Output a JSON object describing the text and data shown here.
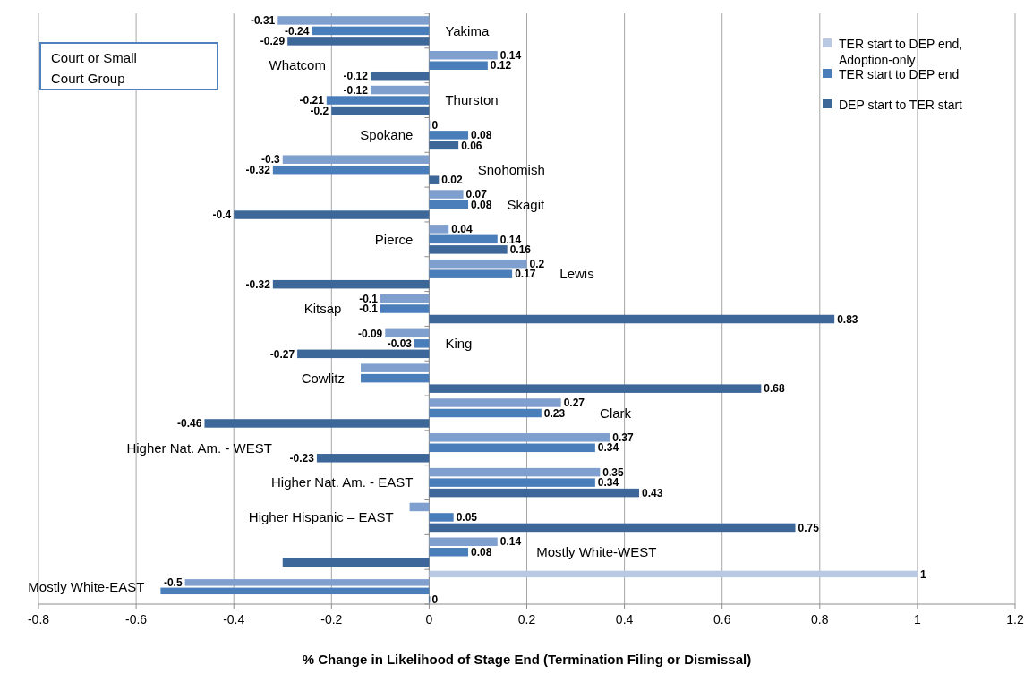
{
  "chart_data": {
    "type": "bar",
    "orientation": "horizontal",
    "xlabel": "% Change in Likelihood of Stage End (Termination Filing or Dismissal)",
    "ylabel": "Court or Small Court Group",
    "categories": [
      "Yakima",
      "Whatcom",
      "Thurston",
      "Spokane",
      "Snohomish",
      "Skagit",
      "Pierce",
      "Lewis",
      "Kitsap",
      "King",
      "Cowlitz",
      "Clark",
      "Higher Nat. Am. - WEST",
      "Higher Nat. Am. - EAST",
      "Higher Hispanic – EAST",
      "Mostly White-WEST",
      "Mostly White-EAST"
    ],
    "series": [
      {
        "name": "TER start to DEP end, Adoption-only",
        "color": "#b9c9e3",
        "values": [
          null,
          null,
          null,
          null,
          null,
          null,
          null,
          null,
          null,
          null,
          null,
          null,
          null,
          null,
          null,
          null,
          1
        ],
        "value_labels": [
          null,
          null,
          null,
          null,
          null,
          null,
          null,
          null,
          null,
          null,
          null,
          null,
          null,
          null,
          null,
          null,
          "1"
        ]
      },
      {
        "color": "#7f9fcf",
        "values": [
          -0.31,
          0.14,
          -0.12,
          0,
          -0.3,
          0.07,
          0.04,
          0.2,
          -0.1,
          -0.09,
          -0.14,
          0.27,
          0.37,
          0.35,
          -0.04,
          0.14,
          -0.5
        ],
        "value_labels": [
          "-0.31",
          "0.14",
          "-0.12",
          "0",
          "-0.3",
          "0.07",
          "0.04",
          "0.2",
          "-0.1",
          "-0.09",
          null,
          "0.27",
          "0.37",
          "0.35",
          null,
          "0.14",
          "-0.5"
        ]
      },
      {
        "name": "TER start to DEP end",
        "color": "#4a7ebb",
        "values": [
          -0.24,
          0.12,
          -0.21,
          0.08,
          -0.32,
          0.08,
          0.14,
          0.17,
          -0.1,
          -0.03,
          -0.14,
          0.23,
          0.34,
          0.34,
          0.05,
          0.08,
          -0.55
        ],
        "value_labels": [
          "-0.24",
          "0.12",
          "-0.21",
          "0.08",
          "-0.32",
          "0.08",
          "0.14",
          "0.17",
          "-0.1",
          "-0.03",
          null,
          "0.23",
          "0.34",
          "0.34",
          "0.05",
          "0.08",
          null
        ]
      },
      {
        "name": "DEP start to TER start",
        "color": "#3d6699",
        "values": [
          -0.29,
          -0.12,
          -0.2,
          0.06,
          0.02,
          -0.4,
          0.16,
          -0.32,
          0.83,
          -0.27,
          0.68,
          -0.46,
          -0.23,
          0.43,
          0.75,
          -0.3,
          0
        ],
        "value_labels": [
          "-0.29",
          "-0.12",
          "-0.2",
          "0.06",
          "0.02",
          "-0.4",
          "0.16",
          "-0.32",
          "0.83",
          "-0.27",
          "0.68",
          "-0.46",
          "-0.23",
          "0.43",
          "0.75",
          null,
          "0"
        ]
      }
    ],
    "xlim": [
      -0.8,
      1.2
    ],
    "xticks": [
      -0.8,
      -0.6,
      -0.4,
      -0.2,
      0,
      0.2,
      0.4,
      0.6,
      0.8,
      1,
      1.2
    ],
    "grid": "x",
    "legend": "top right"
  }
}
